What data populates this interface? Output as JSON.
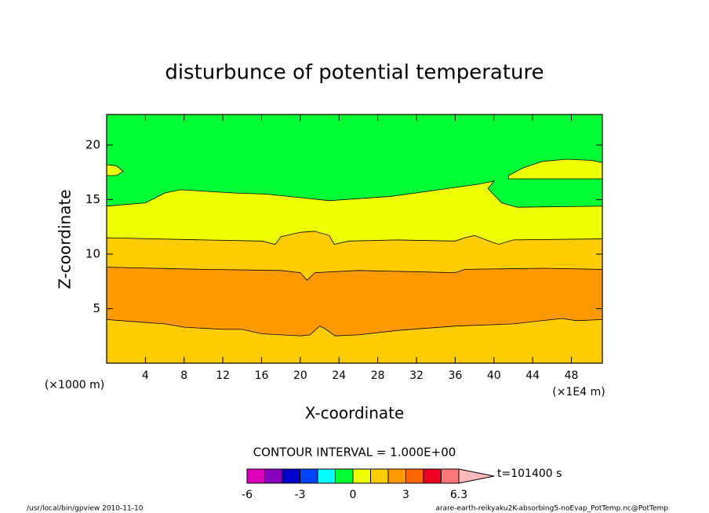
{
  "chart_data": {
    "type": "contourf",
    "title": "disturbunce of potential temperature",
    "x_label": "X-coordinate",
    "y_label": "Z-coordinate",
    "x_unit_label": "(×1E4 m)",
    "y_unit_label": "(×1000 m)",
    "contour_interval_label": "CONTOUR INTERVAL = 1.000E+00",
    "time_label": "t=101400 s",
    "footer_left": "/usr/local/bin/gpview  2010-11-10",
    "footer_right": "arare-earth-reikyaku2K-absorbing5-noEvap_PotTemp.nc@PotTemp",
    "xlim": [
      0,
      51.2
    ],
    "ylim": [
      0,
      22.8
    ],
    "xticks": [
      4,
      8,
      12,
      16,
      20,
      24,
      28,
      32,
      36,
      40,
      44,
      48
    ],
    "yticks": [
      5,
      10,
      15,
      20
    ],
    "background_color": "#00ff33",
    "regions": [
      {
        "color": "#eeff00",
        "closed": false,
        "x": [
          0,
          4,
          6,
          7.6,
          13.3,
          16.5,
          23,
          29.4,
          34.3,
          38.3,
          40,
          39.4,
          40.8,
          42.4,
          51.2
        ],
        "z": [
          14.4,
          14.7,
          15.6,
          15.9,
          15.6,
          15.5,
          14.9,
          15.3,
          15.9,
          16.4,
          16.7,
          16,
          14.7,
          14.3,
          14.4
        ]
      },
      {
        "color": "#ffcc00",
        "closed": false,
        "x": [
          0,
          10,
          16,
          17.4,
          18,
          20,
          21.5,
          23,
          23.5,
          25,
          30,
          36,
          37,
          38,
          39.5,
          40.5,
          42,
          51.2
        ],
        "z": [
          11.5,
          11.3,
          11.2,
          10.9,
          11.6,
          12,
          12.1,
          11.7,
          10.9,
          11.2,
          11.3,
          11.2,
          11.5,
          11.7,
          11.2,
          10.9,
          11.3,
          11.4
        ]
      },
      {
        "color": "#ff9900",
        "closed": false,
        "x": [
          0,
          10,
          18,
          20,
          20.7,
          21.5,
          26,
          36,
          37,
          45,
          51.2
        ],
        "z": [
          8.8,
          8.6,
          8.5,
          8.3,
          7.6,
          8.3,
          8.5,
          8.3,
          8.6,
          8.7,
          8.6
        ]
      },
      {
        "color": "#ffcc00",
        "closed": false,
        "x": [
          0,
          3,
          6,
          8,
          12,
          14,
          16,
          20,
          21,
          22,
          22.5,
          23.6,
          26,
          30,
          36,
          42,
          47,
          48.5,
          51.2
        ],
        "z": [
          4,
          3.8,
          3.6,
          3.3,
          3.1,
          3.1,
          2.7,
          2.5,
          2.6,
          3.4,
          3.2,
          2.5,
          2.6,
          3,
          3.4,
          3.6,
          4.1,
          3.9,
          4
        ]
      },
      {
        "color": "#eeff00",
        "closed": true,
        "x": [
          0,
          1,
          1.7,
          1,
          0
        ],
        "z": [
          18.2,
          18.1,
          17.6,
          17.2,
          17.2
        ]
      },
      {
        "color": "#eeff00",
        "closed": true,
        "x": [
          41.5,
          43,
          45,
          47.5,
          50,
          51.2,
          51.2,
          41.5
        ],
        "z": [
          17.2,
          17.9,
          18.5,
          18.7,
          18.6,
          18.4,
          16.9,
          16.9
        ]
      }
    ],
    "colorbar": {
      "levels": [
        -6,
        -5,
        -4,
        -3,
        -2,
        -1,
        0,
        1,
        2,
        3,
        4,
        5,
        6.3
      ],
      "colors": [
        "#dd00bb",
        "#8800bb",
        "#0000cc",
        "#0044ff",
        "#00ffff",
        "#00ff33",
        "#eeff00",
        "#ffcc00",
        "#ff9900",
        "#ff6600",
        "#ee0022",
        "#ff7777"
      ],
      "extend_color": "#ffbbbb",
      "ticks": [
        -6,
        -3,
        0,
        3,
        6.3
      ]
    }
  }
}
